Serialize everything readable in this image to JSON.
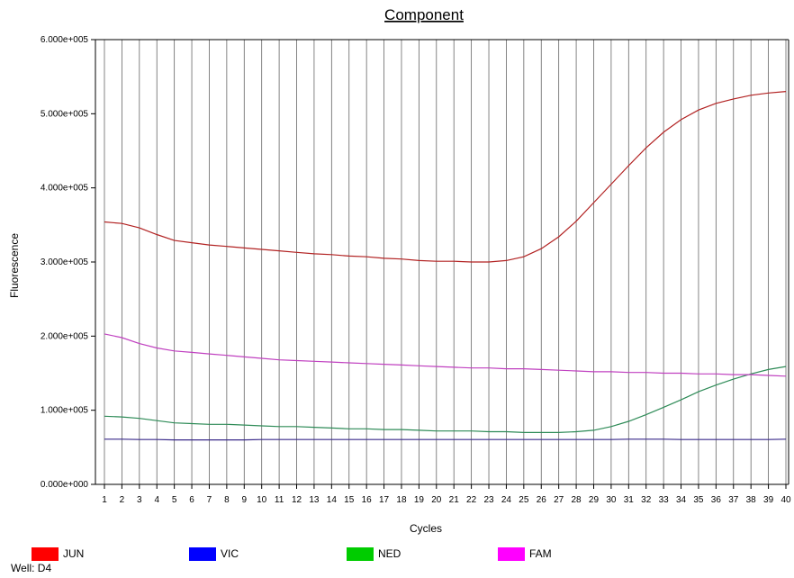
{
  "chart_data": {
    "type": "line",
    "title": "Component",
    "xlabel": "Cycles",
    "ylabel": "Fluorescence",
    "x": [
      1,
      2,
      3,
      4,
      5,
      6,
      7,
      8,
      9,
      10,
      11,
      12,
      13,
      14,
      15,
      16,
      17,
      18,
      19,
      20,
      21,
      22,
      23,
      24,
      25,
      26,
      27,
      28,
      29,
      30,
      31,
      32,
      33,
      34,
      35,
      36,
      37,
      38,
      39,
      40
    ],
    "xlim": [
      1,
      40
    ],
    "ylim": [
      0,
      600000
    ],
    "yticks": [
      0,
      100000,
      200000,
      300000,
      400000,
      500000,
      600000
    ],
    "ytick_labels": [
      "0.000e+000",
      "1.000e+005",
      "2.000e+005",
      "3.000e+005",
      "4.000e+005",
      "5.000e+005",
      "6.000e+005"
    ],
    "grid": "vertical",
    "legend_position": "bottom",
    "series": [
      {
        "name": "JUN",
        "color": "#b22222",
        "legend_color": "#ff0000",
        "values": [
          354000,
          352000,
          346000,
          337000,
          329000,
          326000,
          323000,
          321000,
          319000,
          317000,
          315000,
          313000,
          311000,
          310000,
          308000,
          307000,
          305000,
          304000,
          302000,
          301000,
          301000,
          300000,
          300000,
          302000,
          307000,
          318000,
          334000,
          355000,
          380000,
          405000,
          430000,
          454000,
          475000,
          492000,
          505000,
          514000,
          520000,
          525000,
          528000,
          530000
        ]
      },
      {
        "name": "VIC",
        "color": "#3a2a8a",
        "legend_color": "#0000ff",
        "values": [
          61000,
          61000,
          60500,
          60500,
          60000,
          60000,
          60000,
          60000,
          60000,
          60500,
          60500,
          60500,
          60500,
          60500,
          60500,
          60500,
          60500,
          60500,
          60500,
          60500,
          60500,
          60500,
          60500,
          60500,
          60500,
          60500,
          60500,
          60500,
          60500,
          60500,
          61000,
          61000,
          61000,
          60500,
          60500,
          60500,
          60500,
          60500,
          60500,
          61000
        ]
      },
      {
        "name": "NED",
        "color": "#2e8b57",
        "legend_color": "#00cc00",
        "values": [
          92000,
          91000,
          89000,
          86000,
          83000,
          82000,
          81000,
          81000,
          80000,
          79000,
          78000,
          78000,
          77000,
          76000,
          75000,
          75000,
          74000,
          74000,
          73000,
          72000,
          72000,
          72000,
          71000,
          71000,
          70000,
          70000,
          70000,
          71000,
          73000,
          78000,
          85000,
          94000,
          104000,
          114000,
          125000,
          134000,
          142000,
          149000,
          155000,
          159000
        ]
      },
      {
        "name": "FAM",
        "color": "#c040c0",
        "legend_color": "#ff00ff",
        "values": [
          203000,
          198000,
          190000,
          184000,
          180000,
          178000,
          176000,
          174000,
          172000,
          170000,
          168000,
          167000,
          166000,
          165000,
          164000,
          163000,
          162000,
          161000,
          160000,
          159000,
          158000,
          157000,
          157000,
          156000,
          156000,
          155000,
          154000,
          153000,
          152000,
          152000,
          151000,
          151000,
          150000,
          150000,
          149000,
          149000,
          148000,
          148000,
          147000,
          146000
        ]
      }
    ]
  },
  "well_label": "Well: D4"
}
